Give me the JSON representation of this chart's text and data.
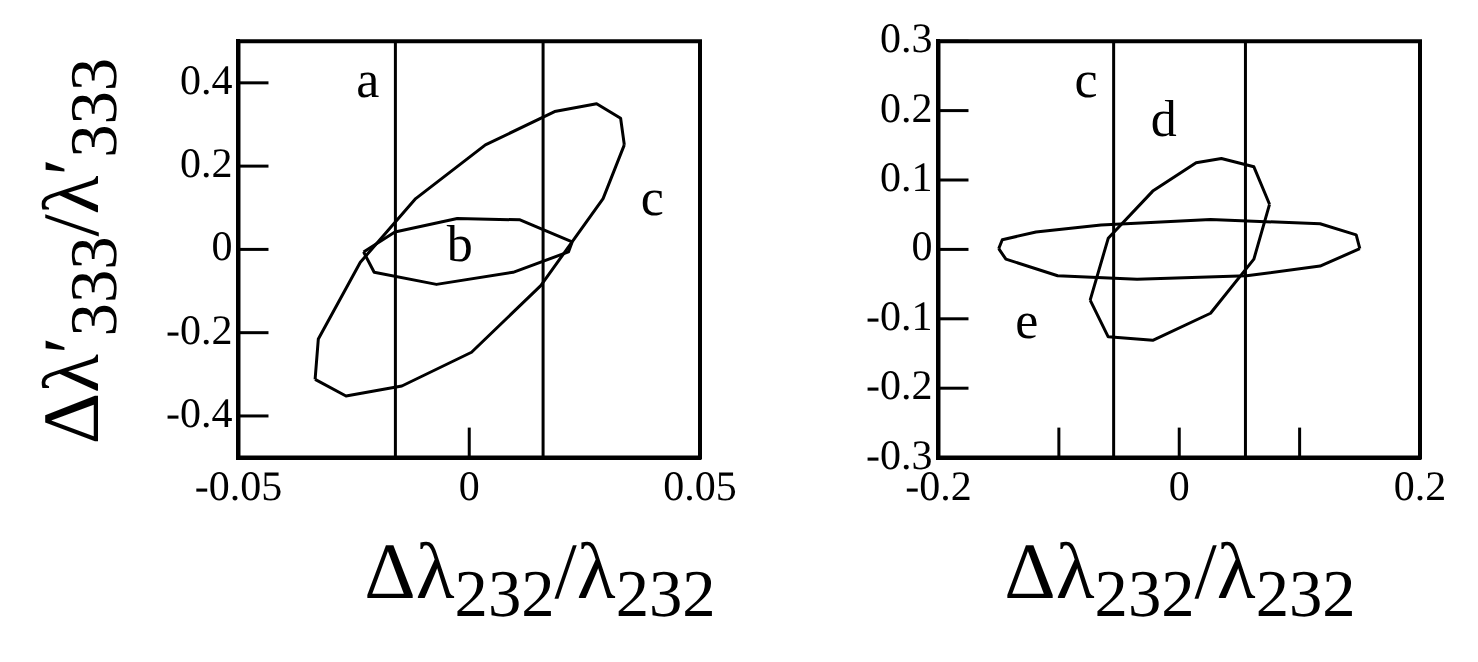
{
  "chart_data": [
    {
      "type": "line",
      "xlabel": "Δλ$_{232}$/λ$_{232}$",
      "ylabel": "Δλ′$_{333}$/λ′$_{333}$",
      "xlim": [
        -0.05,
        0.05
      ],
      "ylim": [
        -0.5,
        0.5
      ],
      "xticks": [
        -0.05,
        0,
        0.05
      ],
      "yticks": [
        -0.4,
        -0.2,
        0,
        0.2,
        0.4
      ],
      "series": [
        {
          "name": "c",
          "type": "line",
          "color": "#000000",
          "x": [
            -0.0334,
            -0.0327,
            -0.0236,
            -0.0116,
            0.0035,
            0.0185,
            0.0276,
            0.0328,
            0.0336
          ],
          "values": [
            -0.312,
            -0.215,
            -0.031,
            0.122,
            0.251,
            0.331,
            0.35,
            0.315,
            0.251
          ]
        },
        {
          "type": "line",
          "color": "#000000",
          "x": [
            -0.0334,
            -0.0267,
            -0.0146,
            0.0005,
            0.0155,
            0.029,
            0.0336
          ],
          "values": [
            -0.312,
            -0.352,
            -0.328,
            -0.247,
            -0.087,
            0.122,
            0.251
          ]
        },
        {
          "name": "b",
          "type": "line",
          "color": "#000000",
          "x": [
            -0.0229,
            -0.0161,
            -0.0026,
            0.011,
            0.0223
          ],
          "values": [
            -0.006,
            0.042,
            0.074,
            0.071,
            0.018
          ]
        },
        {
          "type": "line",
          "color": "#000000",
          "x": [
            -0.0229,
            -0.0206,
            -0.0071,
            0.0095,
            0.0215,
            0.0223
          ],
          "values": [
            -0.006,
            -0.055,
            -0.084,
            -0.055,
            -0.006,
            0.018
          ]
        }
      ],
      "ref_lines": [
        {
          "axis": "x",
          "value": -0.016,
          "label": "a"
        },
        {
          "axis": "x",
          "value": 0.016
        }
      ]
    },
    {
      "type": "line",
      "xlabel": "Δλ$_{232}$/λ$_{232}$",
      "xlim": [
        -0.2,
        0.2
      ],
      "ylim": [
        -0.3,
        0.3
      ],
      "xticks": [
        -0.2,
        {
          "value": -0.1,
          "label": null
        },
        0,
        {
          "value": 0.1,
          "label": null
        },
        0.2
      ],
      "yticks": [
        -0.3,
        -0.2,
        -0.1,
        0,
        0.1,
        0.2,
        0.3
      ],
      "series": [
        {
          "name": "d",
          "type": "line",
          "color": "#000000",
          "x": [
            -0.074,
            -0.059,
            -0.022,
            0.014,
            0.035,
            0.062,
            0.075
          ],
          "values": [
            -0.073,
            0.016,
            0.084,
            0.125,
            0.131,
            0.119,
            0.065
          ]
        },
        {
          "type": "line",
          "color": "#000000",
          "x": [
            -0.074,
            -0.059,
            -0.022,
            0.026,
            0.062,
            0.075
          ],
          "values": [
            -0.073,
            -0.126,
            -0.131,
            -0.092,
            -0.014,
            0.065
          ]
        },
        {
          "name": "e",
          "type": "line",
          "color": "#000000",
          "x": [
            -0.15,
            -0.147,
            -0.119,
            -0.065,
            0.026,
            0.117,
            0.147,
            0.15
          ],
          "values": [
            0.001,
            0.014,
            0.025,
            0.035,
            0.043,
            0.037,
            0.021,
            0.001
          ]
        },
        {
          "type": "line",
          "color": "#000000",
          "x": [
            -0.15,
            -0.144,
            -0.101,
            -0.035,
            0.056,
            0.117,
            0.15
          ],
          "values": [
            0.001,
            -0.014,
            -0.038,
            -0.043,
            -0.038,
            -0.024,
            0.001
          ]
        }
      ],
      "ref_lines": [
        {
          "axis": "x",
          "value": -0.0545,
          "label": "c"
        },
        {
          "axis": "x",
          "value": 0.055
        }
      ]
    }
  ]
}
